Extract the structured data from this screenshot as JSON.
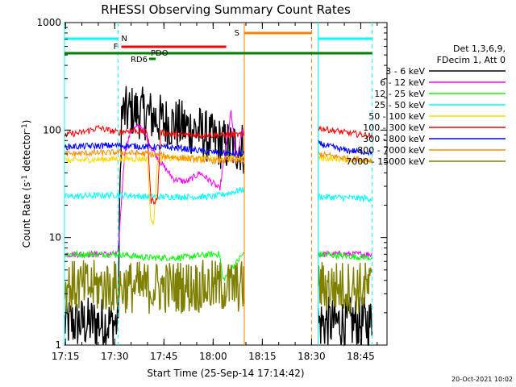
{
  "chart_data": {
    "type": "line",
    "title": "RHESSI Observing Summary Count Rates",
    "xlabel": "Start Time (25-Sep-14 17:14:42)",
    "ylabel_main": "Count Rate (s",
    "ylabel_sup1": "-1",
    "ylabel_mid": " detector",
    "ylabel_sup2": "-1",
    "ylabel_end": ")",
    "yscale": "log",
    "xlim": [
      "17:14:42",
      "18:53:00"
    ],
    "ylim": [
      1,
      1000
    ],
    "xticks": [
      "17:15",
      "17:30",
      "17:45",
      "18:00",
      "18:15",
      "18:30",
      "18:45"
    ],
    "yticks": [
      {
        "value": 1,
        "label": "1"
      },
      {
        "value": 10,
        "label": "10"
      },
      {
        "value": 100,
        "label": "100"
      },
      {
        "value": 1000,
        "label": "1000"
      }
    ],
    "legend": {
      "placement": "right",
      "header": [
        "Det 1,3,6,9,",
        "FDecim 1, Att 0"
      ],
      "entries": [
        {
          "label": "3 - 6 keV",
          "color": "#000000"
        },
        {
          "label": "6 - 12 keV",
          "color": "#ff00ff"
        },
        {
          "label": "12 - 25 keV",
          "color": "#00ff00"
        },
        {
          "label": "25 - 50 keV",
          "color": "#00ffff"
        },
        {
          "label": "50 - 100 keV",
          "color": "#ffd700"
        },
        {
          "label": "100 - 300 keV",
          "color": "#ff0000"
        },
        {
          "label": "300 - 800 keV",
          "color": "#0000ff"
        },
        {
          "label": "800 - 7000 keV",
          "color": "#ff8c00"
        },
        {
          "label": "7000 - 15000 keV",
          "color": "#808000"
        }
      ]
    },
    "flag_bars": [
      {
        "label": "N",
        "color": "#00ffff",
        "segments": [
          [
            "17:14:42",
            "17:31:00"
          ],
          [
            "18:32:00",
            "18:48:30"
          ]
        ]
      },
      {
        "label": "F",
        "color": "#ff0000",
        "segments": [
          [
            "17:32:00",
            "18:04:00"
          ]
        ]
      },
      {
        "label": "S",
        "color": "#ff8000",
        "segments": [
          [
            "18:09:30",
            "18:30:00"
          ]
        ]
      },
      {
        "label": "",
        "color": "#008000",
        "segments": [
          [
            "17:14:42",
            "18:48:30"
          ]
        ]
      },
      {
        "label": "PDO",
        "color": "#008000",
        "segments": [
          [
            "17:39:00",
            "17:40:00"
          ]
        ]
      },
      {
        "label": "RD6",
        "color": "#008000",
        "segments": [
          [
            "17:40:30",
            "17:42:30"
          ]
        ]
      }
    ],
    "vertical_markers": [
      {
        "time": "17:14:42",
        "color": "#00ffff",
        "style": "solid"
      },
      {
        "time": "17:31:00",
        "color": "#00ffff",
        "style": "dashed"
      },
      {
        "time": "18:09:30",
        "color": "#ff8000",
        "style": "solid"
      },
      {
        "time": "18:30:00",
        "color": "#ff8000",
        "style": "dashed"
      },
      {
        "time": "18:32:00",
        "color": "#00ffff",
        "style": "solid"
      },
      {
        "time": "18:48:30",
        "color": "#00ffff",
        "style": "dashed"
      }
    ],
    "gap": [
      "18:09:30",
      "18:32:00"
    ],
    "series": [
      {
        "name": "3 - 6 keV",
        "color": "#000000",
        "style": "bars",
        "x": [
          "17:14:42",
          "17:31:00",
          "17:32:00",
          "17:35:00",
          "17:40:00",
          "17:45:00",
          "17:50:00",
          "17:55:00",
          "18:00:00",
          "18:05:00",
          "18:09:00",
          "18:32:00",
          "18:48:30"
        ],
        "y": [
          1.6,
          1.6,
          140,
          150,
          140,
          120,
          110,
          100,
          80,
          70,
          70,
          1.6,
          1.6
        ]
      },
      {
        "name": "6 - 12 keV",
        "color": "#ff00ff",
        "x": [
          "17:14:42",
          "17:31:00",
          "17:33:00",
          "17:35:00",
          "17:38:00",
          "17:41:00",
          "17:44:00",
          "17:48:00",
          "17:52:00",
          "17:56:00",
          "18:00:00",
          "18:02:00",
          "18:04:00",
          "18:05:30",
          "18:07:00",
          "18:09:00",
          "18:32:00",
          "18:48:30"
        ],
        "y": [
          7,
          7,
          60,
          100,
          110,
          70,
          50,
          35,
          33,
          40,
          32,
          28,
          70,
          150,
          50,
          100,
          7,
          7
        ]
      },
      {
        "name": "12 - 25 keV",
        "color": "#00ff00",
        "x": [
          "17:14:42",
          "17:31:00",
          "17:40:00",
          "17:50:00",
          "18:00:00",
          "18:02:00",
          "18:03:00",
          "18:09:00",
          "18:32:00",
          "18:48:30"
        ],
        "y": [
          7,
          7,
          6.5,
          6.5,
          7,
          7,
          4,
          7,
          7,
          6.5
        ]
      },
      {
        "name": "25 - 50 keV",
        "color": "#00ffff",
        "x": [
          "17:14:42",
          "17:31:00",
          "17:40:00",
          "17:50:00",
          "18:00:00",
          "18:05:00",
          "18:09:00",
          "18:32:00",
          "18:48:30"
        ],
        "y": [
          24,
          25,
          24,
          24,
          24,
          26,
          28,
          24,
          23
        ]
      },
      {
        "name": "50 - 100 keV",
        "color": "#ffd700",
        "x": [
          "17:14:42",
          "17:31:00",
          "17:40:00",
          "17:41:00",
          "17:42:00",
          "17:43:00",
          "17:50:00",
          "18:00:00",
          "18:09:00",
          "18:32:00",
          "18:48:30"
        ],
        "y": [
          52,
          54,
          54,
          14,
          14,
          54,
          55,
          55,
          55,
          55,
          52
        ]
      },
      {
        "name": "100 - 300 keV",
        "color": "#ff0000",
        "x": [
          "17:14:42",
          "17:20:00",
          "17:25:00",
          "17:31:00",
          "17:35:00",
          "17:40:00",
          "17:41:00",
          "17:43:00",
          "17:44:00",
          "17:50:00",
          "18:00:00",
          "18:09:00",
          "18:32:00",
          "18:40:00",
          "18:48:30"
        ],
        "y": [
          90,
          95,
          105,
          95,
          100,
          95,
          22,
          22,
          95,
          90,
          90,
          90,
          105,
          95,
          88
        ]
      },
      {
        "name": "300 - 800 keV",
        "color": "#0000ff",
        "x": [
          "17:14:42",
          "17:31:00",
          "17:40:00",
          "17:50:00",
          "18:00:00",
          "18:09:00",
          "18:32:00",
          "18:40:00",
          "18:48:30"
        ],
        "y": [
          70,
          72,
          70,
          68,
          62,
          60,
          75,
          65,
          62
        ]
      },
      {
        "name": "800 - 7000 keV",
        "color": "#ff8c00",
        "x": [
          "17:14:42",
          "17:31:00",
          "17:40:00",
          "17:50:00",
          "18:00:00",
          "18:09:00",
          "18:32:00",
          "18:40:00",
          "18:48:30"
        ],
        "y": [
          60,
          62,
          60,
          55,
          52,
          52,
          60,
          55,
          52
        ]
      },
      {
        "name": "7000 - 15000 keV",
        "color": "#808000",
        "style": "bars",
        "x": [
          "17:14:42",
          "17:31:00",
          "17:40:00",
          "17:50:00",
          "18:00:00",
          "18:09:00",
          "18:32:00",
          "18:48:30"
        ],
        "y": [
          3.5,
          3.5,
          3.4,
          3.5,
          3.5,
          3.5,
          3.5,
          3.4
        ]
      }
    ]
  },
  "timestamp": "20-Oct-2021 10:02"
}
